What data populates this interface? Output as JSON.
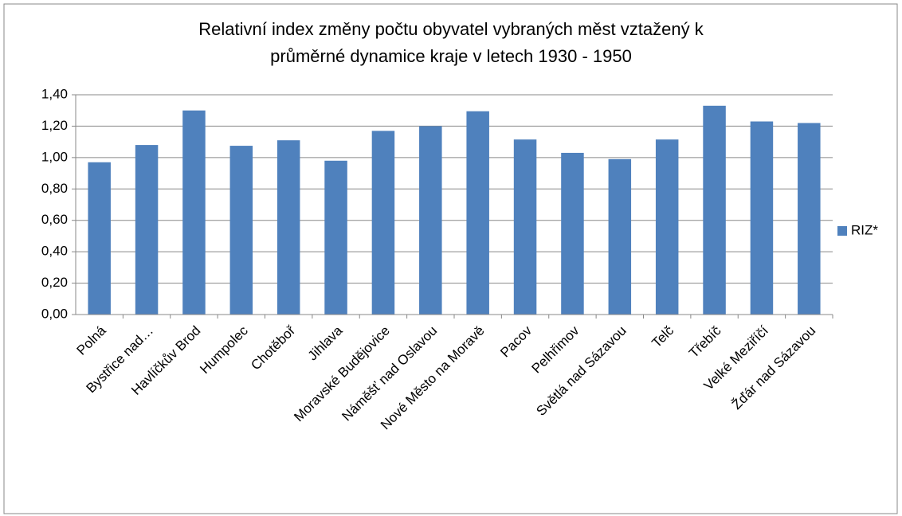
{
  "chart_data": {
    "type": "bar",
    "title": [
      "Relativní index změny počtu obyvatel vybraných měst vztažený k",
      "průměrné dynamice kraje v letech 1930 - 1950"
    ],
    "categories": [
      "Polná",
      "Bystřice nad…",
      "Havlíčkův Brod",
      "Humpolec",
      "Chotěboř",
      "Jihlava",
      "Moravské Budějovice",
      "Náměšť nad Oslavou",
      "Nové Město na Moravě",
      "Pacov",
      "Pelhřimov",
      "Světlá nad Sázavou",
      "Telč",
      "Třebíč",
      "Velké Meziříčí",
      "Žďár nad Sázavou"
    ],
    "series": [
      {
        "name": "RIZ*",
        "color": "#4f81bd",
        "values": [
          0.97,
          1.08,
          1.3,
          1.075,
          1.11,
          0.98,
          1.17,
          1.2,
          1.295,
          1.115,
          1.03,
          0.99,
          1.115,
          1.33,
          1.23,
          1.22
        ]
      }
    ],
    "ylim": [
      0,
      1.4
    ],
    "yticks": [
      {
        "value": 0,
        "label": "0,00"
      },
      {
        "value": 0.2,
        "label": "0,20"
      },
      {
        "value": 0.4,
        "label": "0,40"
      },
      {
        "value": 0.6,
        "label": "0,60"
      },
      {
        "value": 0.8,
        "label": "0,80"
      },
      {
        "value": 1.0,
        "label": "1,00"
      },
      {
        "value": 1.2,
        "label": "1,20"
      },
      {
        "value": 1.4,
        "label": "1,40"
      }
    ],
    "grid": true,
    "legend": "right"
  }
}
